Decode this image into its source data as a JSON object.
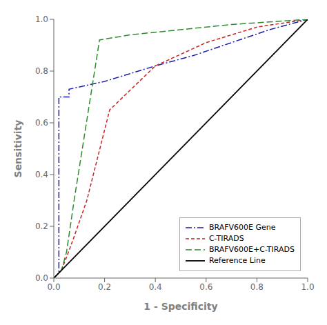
{
  "chart_data": {
    "type": "line",
    "xlabel": "1 - Specificity",
    "ylabel": "Sensitivity",
    "xlim": [
      0.0,
      1.0
    ],
    "ylim": [
      0.0,
      1.0
    ],
    "xticks": [
      {
        "value": 0.0,
        "label": "0.0"
      },
      0.2,
      0.4,
      0.6,
      0.8,
      {
        "value": 1.0,
        "label": "1.0"
      }
    ],
    "yticks": [
      {
        "value": 0.0,
        "label": "0.0"
      },
      0.2,
      0.4,
      0.6,
      0.8,
      {
        "value": 1.0,
        "label": "1.0"
      }
    ],
    "grid": false,
    "legend": "lower right",
    "series": [
      {
        "name": "BRAFV600E Gene",
        "color": "#1a1aaa",
        "line_style": "dashdot",
        "x": [
          0.0,
          0.02,
          0.02,
          0.06,
          0.06,
          0.2,
          0.4,
          0.55,
          0.7,
          0.85,
          1.0
        ],
        "values": [
          0.0,
          0.02,
          0.7,
          0.7,
          0.73,
          0.76,
          0.82,
          0.86,
          0.91,
          0.96,
          1.0
        ]
      },
      {
        "name": "C-TIRADS",
        "color": "#cc2222",
        "line_style": "dashed",
        "x": [
          0.0,
          0.03,
          0.05,
          0.08,
          0.13,
          0.22,
          0.4,
          0.6,
          0.8,
          1.0
        ],
        "values": [
          0.0,
          0.03,
          0.08,
          0.16,
          0.3,
          0.65,
          0.82,
          0.91,
          0.97,
          1.0
        ]
      },
      {
        "name": "BRAFV600E+C-TIRADS",
        "color": "#2e8b2e",
        "line_style": "longdash",
        "x": [
          0.0,
          0.03,
          0.05,
          0.08,
          0.18,
          0.3,
          0.5,
          0.7,
          0.85,
          1.0
        ],
        "values": [
          0.0,
          0.03,
          0.1,
          0.3,
          0.92,
          0.94,
          0.96,
          0.98,
          0.99,
          1.0
        ]
      },
      {
        "name": "Reference Line",
        "color": "#000000",
        "line_style": "solid",
        "x": [
          0.0,
          1.0
        ],
        "values": [
          0.0,
          1.0
        ]
      }
    ]
  }
}
